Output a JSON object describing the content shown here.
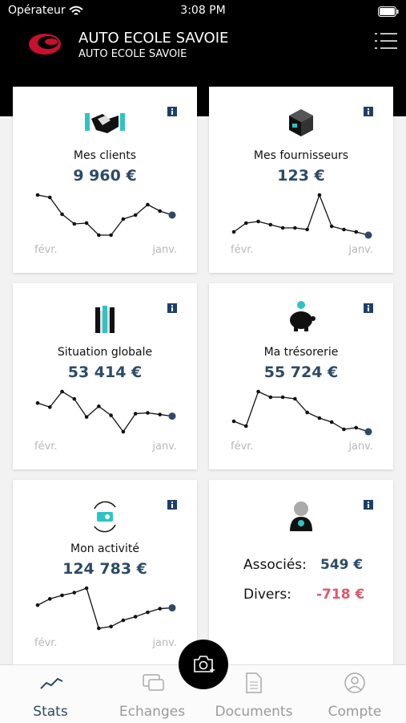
{
  "status_bar": {
    "carrier": "Opérateur",
    "time": "3:08 PM"
  },
  "header": {
    "title": "AUTO ECOLE SAVOIE",
    "subtitle": "AUTO ECOLE SAVOIE"
  },
  "cards": [
    {
      "title": "Mes clients",
      "amount": "9 960 €",
      "start_label": "févr.",
      "end_label": "janv.",
      "values": [
        57,
        54,
        33,
        21,
        22,
        7,
        7,
        27,
        32,
        45,
        37,
        32
      ]
    },
    {
      "title": "Mes fournisseurs",
      "amount": "123 €",
      "start_label": "févr.",
      "end_label": "janv.",
      "values": [
        10,
        21,
        23,
        19,
        15,
        15,
        13,
        56,
        17,
        13,
        10,
        6
      ]
    },
    {
      "title": "Situation globale",
      "amount": "53 414 €",
      "start_label": "févr.",
      "end_label": "janv.",
      "values": [
        57,
        52,
        71,
        62,
        40,
        53,
        42,
        22,
        44,
        45,
        43,
        41
      ]
    },
    {
      "title": "Ma trésorerie",
      "amount": "55 724 €",
      "start_label": "févr.",
      "end_label": "janv.",
      "values": [
        35,
        29,
        72,
        65,
        65,
        63,
        46,
        39,
        34,
        25,
        27,
        22
      ]
    },
    {
      "title": "Mon activité",
      "amount": "124 783 €",
      "start_label": "févr.",
      "end_label": "janv.",
      "values": [
        46,
        53,
        57,
        60,
        65,
        20,
        22,
        29,
        33,
        38,
        42,
        43
      ]
    }
  ],
  "partners_card": {
    "rows": [
      {
        "label": "Associés:",
        "amount": "549 €"
      },
      {
        "label": "Divers:",
        "amount": "-718 €"
      }
    ]
  },
  "tabs": [
    "Stats",
    "Echanges",
    "Documents",
    "Compte"
  ]
}
